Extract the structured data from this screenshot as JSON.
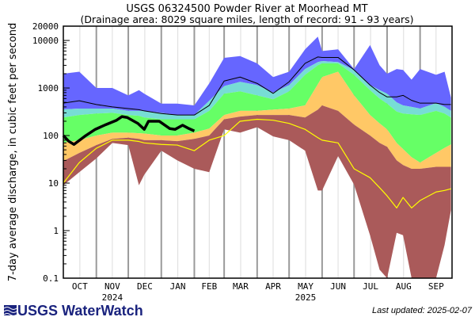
{
  "chart_data": {
    "type": "area",
    "title": "USGS 06324500 Powder River at Moorhead MT",
    "subtitle": "(Drainage area: 8029 square miles, length of record: 91 - 93 years)",
    "ylabel": "7-day average discharge, in cubic feet per second",
    "xlabel": "",
    "yscale": "log",
    "ylim": [
      0.1,
      20000
    ],
    "y_ticks": [
      "0.1",
      "1",
      "10",
      "100",
      "1000",
      "10000",
      "20000"
    ],
    "y_tick_values": [
      0.1,
      1,
      10,
      100,
      1000,
      10000,
      20000
    ],
    "xlim": [
      "2024-10-01",
      "2025-09-30"
    ],
    "x_ticks": [
      "OCT",
      "NOV",
      "DEC",
      "JAN",
      "FEB",
      "MAR",
      "APR",
      "MAY",
      "JUN",
      "JUL",
      "AUG",
      "SEP"
    ],
    "year_labels": [
      {
        "label": "2024",
        "under": "NOV"
      },
      {
        "label": "2025",
        "under": "MAY"
      }
    ],
    "grid": "vertical month lines",
    "legend": "none",
    "colors": {
      "max_to_p90": "#6666ff",
      "p90_to_p75": "#77ddd5",
      "p75_to_p25": "#66ff66",
      "p25_to_p10": "#ffc866",
      "p10_to_min": "#aa5a5a",
      "median": "#ffff00",
      "mean": "#000000",
      "current": "#000000"
    },
    "dates": [
      "2024-10-01",
      "2024-10-16",
      "2024-11-01",
      "2024-11-16",
      "2024-12-01",
      "2024-12-11",
      "2024-12-16",
      "2025-01-01",
      "2025-01-16",
      "2025-02-01",
      "2025-02-15",
      "2025-03-01",
      "2025-03-16",
      "2025-04-01",
      "2025-04-16",
      "2025-05-01",
      "2025-05-16",
      "2025-05-28",
      "2025-06-01",
      "2025-06-16",
      "2025-07-01",
      "2025-07-16",
      "2025-07-25",
      "2025-08-01",
      "2025-08-10",
      "2025-08-16",
      "2025-08-24",
      "2025-09-01",
      "2025-09-16",
      "2025-09-24",
      "2025-09-30"
    ],
    "series": [
      {
        "key": "max",
        "values": [
          2000,
          2200,
          1000,
          1000,
          700,
          900,
          760,
          470,
          470,
          430,
          1250,
          4300,
          4700,
          3300,
          1700,
          2200,
          6500,
          12000,
          6000,
          6500,
          2500,
          8000,
          3000,
          2000,
          2500,
          2400,
          1500,
          2500,
          1900,
          2200,
          630
        ]
      },
      {
        "key": "p90",
        "values": [
          355,
          370,
          370,
          370,
          330,
          330,
          330,
          300,
          270,
          270,
          540,
          1100,
          1350,
          1150,
          800,
          1150,
          2500,
          3500,
          3700,
          3500,
          2400,
          1150,
          900,
          760,
          500,
          430,
          400,
          370,
          480,
          400,
          330
        ]
      },
      {
        "key": "p75",
        "values": [
          240,
          270,
          290,
          300,
          270,
          260,
          240,
          220,
          220,
          220,
          330,
          760,
          850,
          700,
          580,
          850,
          1900,
          3000,
          3300,
          3300,
          1900,
          900,
          600,
          470,
          320,
          290,
          280,
          270,
          330,
          290,
          240
        ]
      },
      {
        "key": "p25",
        "values": [
          71,
          80,
          100,
          115,
          115,
          112,
          110,
          100,
          100,
          115,
          140,
          270,
          330,
          330,
          350,
          370,
          430,
          1200,
          1700,
          2200,
          700,
          270,
          180,
          135,
          70,
          52,
          35,
          27,
          43,
          55,
          65
        ]
      },
      {
        "key": "p10",
        "values": [
          29,
          43,
          63,
          85,
          90,
          85,
          80,
          80,
          76,
          85,
          100,
          220,
          250,
          270,
          270,
          270,
          240,
          350,
          430,
          330,
          170,
          100,
          70,
          58,
          30,
          24,
          20,
          20,
          22,
          22,
          22
        ]
      },
      {
        "key": "min",
        "values": [
          9,
          17,
          33,
          70,
          63,
          9,
          15,
          48,
          30,
          20,
          17,
          135,
          115,
          150,
          96,
          80,
          48,
          7,
          7,
          37,
          9.3,
          0.8,
          0.15,
          0.1,
          0.9,
          0.8,
          0.1,
          0.1,
          0.1,
          0.5,
          2.7
        ]
      },
      {
        "key": "median",
        "values": [
          10,
          27,
          54,
          80,
          80,
          75,
          70,
          65,
          63,
          48,
          80,
          100,
          200,
          220,
          210,
          180,
          135,
          90,
          80,
          70,
          20,
          13,
          8,
          5.4,
          3,
          5,
          3,
          4.3,
          6.5,
          7,
          7.6
        ]
      },
      {
        "key": "mean",
        "values": [
          480,
          540,
          450,
          400,
          370,
          350,
          330,
          290,
          270,
          270,
          430,
          1400,
          1700,
          1250,
          770,
          1350,
          3300,
          4500,
          4400,
          4400,
          2400,
          1150,
          800,
          650,
          650,
          700,
          550,
          480,
          480,
          450,
          450
        ]
      }
    ],
    "current": {
      "dates": [
        "2024-10-01",
        "2024-10-06",
        "2024-10-11",
        "2024-10-21",
        "2024-10-31",
        "2024-11-10",
        "2024-11-20",
        "2024-11-25",
        "2024-11-30",
        "2024-12-10",
        "2024-12-16",
        "2024-12-20",
        "2024-12-30",
        "2025-01-09",
        "2025-01-14",
        "2025-01-21",
        "2025-01-27",
        "2025-02-01"
      ],
      "values": [
        100,
        76,
        65,
        96,
        135,
        170,
        210,
        250,
        240,
        180,
        135,
        200,
        200,
        140,
        135,
        165,
        140,
        125
      ]
    }
  },
  "footer": {
    "logo_text": "USGS WaterWatch",
    "last_updated": "Last updated: 2025-02-07"
  }
}
